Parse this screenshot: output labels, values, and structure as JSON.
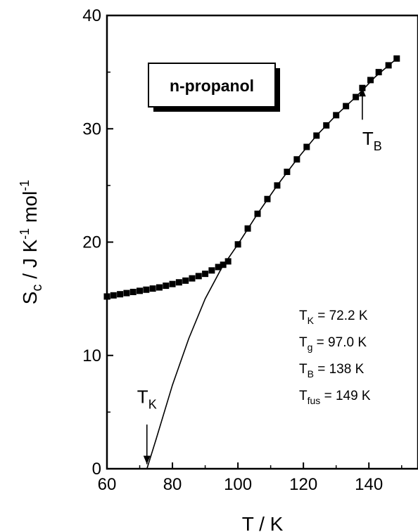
{
  "chart_data": {
    "type": "scatter",
    "xlabel": "T / K",
    "ylabel": {
      "main": "S",
      "sub": "c",
      "rest": " / J K",
      "sup1": "-1",
      "rest2": " mol",
      "sup2": "-1"
    },
    "xlim": [
      60,
      155
    ],
    "ylim": [
      0,
      40
    ],
    "xticks": [
      60,
      80,
      100,
      120,
      140
    ],
    "yticks": [
      0,
      10,
      20,
      30,
      40
    ],
    "legend_box": "n-propanol",
    "series": [
      {
        "marker": "square",
        "points": [
          [
            60.0,
            15.2
          ],
          [
            62.0,
            15.3
          ],
          [
            64.0,
            15.4
          ],
          [
            66.0,
            15.5
          ],
          [
            68.0,
            15.6
          ],
          [
            70.0,
            15.7
          ],
          [
            72.0,
            15.8
          ],
          [
            74.0,
            15.9
          ],
          [
            76.0,
            16.0
          ],
          [
            78.0,
            16.15
          ],
          [
            80.0,
            16.3
          ],
          [
            82.0,
            16.45
          ],
          [
            84.0,
            16.6
          ],
          [
            86.0,
            16.8
          ],
          [
            88.0,
            17.0
          ],
          [
            90.0,
            17.2
          ],
          [
            92.0,
            17.5
          ],
          [
            94.0,
            17.8
          ],
          [
            95.5,
            18.0
          ],
          [
            97.0,
            18.3
          ],
          [
            100.0,
            19.8
          ],
          [
            103.0,
            21.2
          ],
          [
            106.0,
            22.5
          ],
          [
            109.0,
            23.8
          ],
          [
            112.0,
            25.0
          ],
          [
            115.0,
            26.2
          ],
          [
            118.0,
            27.3
          ],
          [
            121.0,
            28.4
          ],
          [
            124.0,
            29.4
          ],
          [
            127.0,
            30.3
          ],
          [
            130.0,
            31.2
          ],
          [
            133.0,
            32.0
          ],
          [
            136.0,
            32.8
          ],
          [
            138.0,
            33.6
          ],
          [
            140.5,
            34.3
          ],
          [
            143.0,
            35.0
          ],
          [
            146.0,
            35.6
          ],
          [
            148.5,
            36.2
          ]
        ]
      },
      {
        "line": "solid",
        "points": [
          [
            72.2,
            0.0
          ],
          [
            75.0,
            2.6
          ],
          [
            80.0,
            7.4
          ],
          [
            85.0,
            11.5
          ],
          [
            90.0,
            15.0
          ],
          [
            95.0,
            17.7
          ],
          [
            100.0,
            19.8
          ],
          [
            106.0,
            22.5
          ],
          [
            112.0,
            25.0
          ],
          [
            118.0,
            27.3
          ],
          [
            124.0,
            29.4
          ],
          [
            130.0,
            31.2
          ],
          [
            136.0,
            32.8
          ],
          [
            142.0,
            34.6
          ],
          [
            148.5,
            36.2
          ]
        ]
      }
    ],
    "annotations": {
      "tk_arrow": {
        "x": 72.2,
        "y_from": 3.9,
        "y_to": 0.4,
        "label_main": "T",
        "label_sub": "K",
        "label_x": 72.2,
        "label_y": 5.8
      },
      "tb_arrow": {
        "x": 138,
        "y_from": 30.8,
        "y_to": 33.6,
        "label_main": "T",
        "label_sub": "B",
        "label_x": 141,
        "label_y": 28.6
      },
      "values": [
        {
          "main": "T",
          "sub": "K",
          "rest": " = 72.2 K"
        },
        {
          "main": "T",
          "sub": "g",
          "rest": " = 97.0 K"
        },
        {
          "main": "T",
          "sub": "B",
          "rest": " = 138 K"
        },
        {
          "main": "T",
          "sub": "fus",
          "rest": " = 149 K"
        }
      ]
    }
  }
}
